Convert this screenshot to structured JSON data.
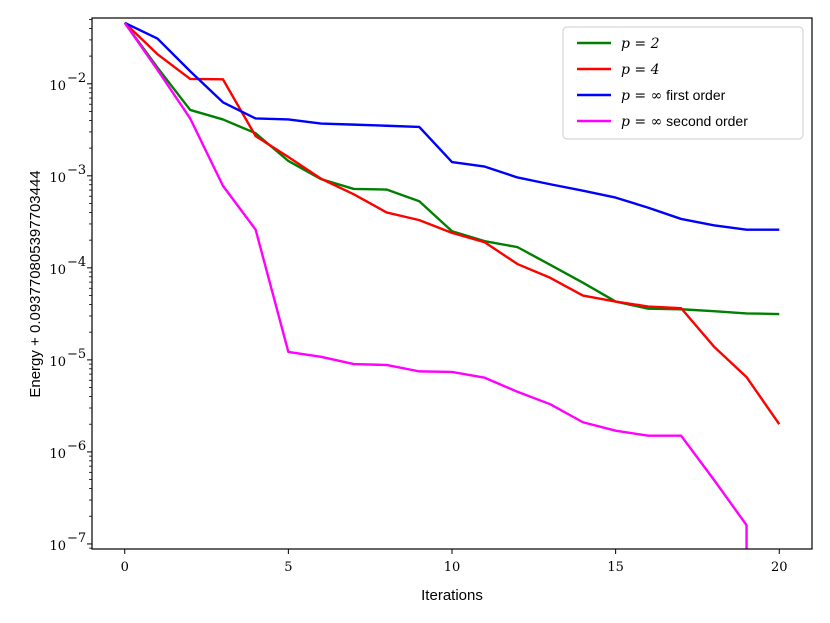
{
  "chart_data": {
    "type": "line",
    "xlabel": "Iterations",
    "ylabel": "Energy + 0.093770805397703444",
    "xlim": [
      -1,
      21
    ],
    "ylim_log10": [
      -7.06,
      -5.68
    ],
    "yscale": "log",
    "grid": false,
    "legend_position": "top-right",
    "x_ticks": [
      0,
      5,
      10,
      15,
      20
    ],
    "x_tick_labels": [
      "0",
      "5",
      "10",
      "15",
      "20"
    ],
    "y_ticks": [
      -2,
      -3,
      -4,
      -5,
      -6,
      -7
    ],
    "y_tick_labels": [
      {
        "base": "10",
        "exp": "−2"
      },
      {
        "base": "10",
        "exp": "−3"
      },
      {
        "base": "10",
        "exp": "−4"
      },
      {
        "base": "10",
        "exp": "−5"
      },
      {
        "base": "10",
        "exp": "−6"
      },
      {
        "base": "10",
        "exp": "−7"
      }
    ],
    "series": [
      {
        "name": "p = 2",
        "legend_math": "p = 2",
        "legend_suffix": "",
        "color": "#008000",
        "x": [
          0,
          1,
          2,
          3,
          4,
          5,
          6,
          7,
          8,
          9,
          10,
          11,
          12,
          13,
          14,
          15,
          16,
          17,
          18,
          19,
          20
        ],
        "y": [
          0.046,
          0.015,
          0.0052,
          0.0041,
          0.0029,
          0.00145,
          0.00092,
          0.00072,
          0.00071,
          0.00053,
          0.00025,
          0.000195,
          0.000168,
          0.000108,
          6.9e-05,
          4.3e-05,
          3.6e-05,
          3.55e-05,
          3.38e-05,
          3.2e-05,
          3.15e-05
        ]
      },
      {
        "name": "p = 4",
        "legend_math": "p = 4",
        "legend_suffix": "",
        "color": "#ff0000",
        "x": [
          0,
          1,
          2,
          3,
          4,
          5,
          6,
          7,
          8,
          9,
          10,
          11,
          12,
          13,
          14,
          15,
          16,
          17,
          18,
          19,
          20
        ],
        "y": [
          0.046,
          0.021,
          0.0113,
          0.0112,
          0.0027,
          0.0016,
          0.00093,
          0.00063,
          0.0004,
          0.00033,
          0.00024,
          0.00019,
          0.00011,
          7.8e-05,
          5e-05,
          4.3e-05,
          3.8e-05,
          3.65e-05,
          1.4e-05,
          6.5e-06,
          2e-06
        ]
      },
      {
        "name": "p = ∞ first order",
        "legend_math": "p = ∞",
        "legend_suffix": " first order",
        "color": "#0000ff",
        "x": [
          0,
          1,
          2,
          3,
          4,
          5,
          6,
          7,
          8,
          9,
          10,
          11,
          12,
          13,
          14,
          15,
          16,
          17,
          18,
          19,
          20
        ],
        "y": [
          0.046,
          0.031,
          0.0137,
          0.0063,
          0.0042,
          0.0041,
          0.0037,
          0.0036,
          0.0035,
          0.0034,
          0.00141,
          0.00126,
          0.00096,
          0.00081,
          0.00069,
          0.00058,
          0.00045,
          0.00034,
          0.00029,
          0.00026,
          0.00026
        ]
      },
      {
        "name": "p = ∞ second order",
        "legend_math": "p = ∞",
        "legend_suffix": " second order",
        "color": "#ff00ff",
        "x": [
          0,
          1,
          2,
          3,
          4,
          5,
          6,
          7,
          8,
          9,
          10,
          11,
          12,
          13,
          14,
          15,
          16,
          17,
          18,
          19,
          19
        ],
        "y": [
          0.046,
          0.0142,
          0.0042,
          0.00078,
          0.00026,
          1.22e-05,
          1.08e-05,
          9e-06,
          8.8e-06,
          7.5e-06,
          7.4e-06,
          6.4e-06,
          4.5e-06,
          3.3e-06,
          2.1e-06,
          1.7e-06,
          1.5e-06,
          1.5e-06,
          5e-07,
          1.6e-07,
          8e-08
        ]
      }
    ]
  }
}
